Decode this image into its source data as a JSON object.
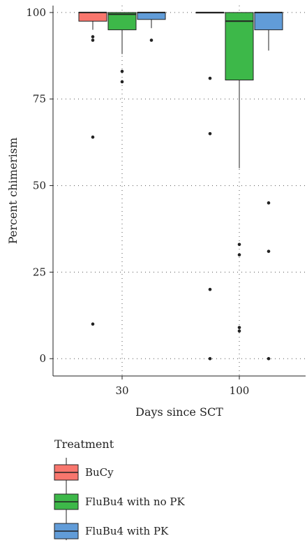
{
  "chart_data": {
    "type": "box",
    "xlabel": "Days since SCT",
    "ylabel": "Percent chimerism",
    "ylim": [
      -5,
      102
    ],
    "y_ticks": [
      0,
      25,
      50,
      75,
      100
    ],
    "categories": [
      "30",
      "100"
    ],
    "grid": true,
    "legend": {
      "title": "Treatment",
      "position": "bottom-left",
      "entries": [
        "BuCy",
        "FluBu4 with no PK",
        "FluBu4 with PK"
      ]
    },
    "colors": {
      "BuCy": "#F8766D",
      "FluBu4 with no PK": "#3DB849",
      "FluBu4 with PK": "#619CD8"
    },
    "series": [
      {
        "name": "BuCy",
        "boxes": [
          {
            "category": "30",
            "whisker_low": 95,
            "q1": 97.5,
            "median": 100,
            "q3": 100,
            "whisker_high": 100,
            "outliers": [
              93,
              92,
              64,
              10
            ]
          },
          {
            "category": "100",
            "whisker_low": 100,
            "q1": 100,
            "median": 100,
            "q3": 100,
            "whisker_high": 100,
            "outliers": [
              81,
              65,
              20,
              0
            ]
          }
        ]
      },
      {
        "name": "FluBu4 with no PK",
        "boxes": [
          {
            "category": "30",
            "whisker_low": 88,
            "q1": 95,
            "median": 99.5,
            "q3": 100,
            "whisker_high": 100,
            "outliers": [
              83,
              80
            ]
          },
          {
            "category": "100",
            "whisker_low": 55,
            "q1": 80.5,
            "median": 97.5,
            "q3": 100,
            "whisker_high": 100,
            "outliers": [
              33,
              30,
              9,
              8
            ]
          }
        ]
      },
      {
        "name": "FluBu4 with PK",
        "boxes": [
          {
            "category": "30",
            "whisker_low": 95.5,
            "q1": 98,
            "median": 100,
            "q3": 100,
            "whisker_high": 100,
            "outliers": [
              92
            ]
          },
          {
            "category": "100",
            "whisker_low": 89,
            "q1": 95,
            "median": 100,
            "q3": 100,
            "whisker_high": 100,
            "outliers": [
              45,
              31,
              0
            ]
          }
        ]
      }
    ]
  }
}
